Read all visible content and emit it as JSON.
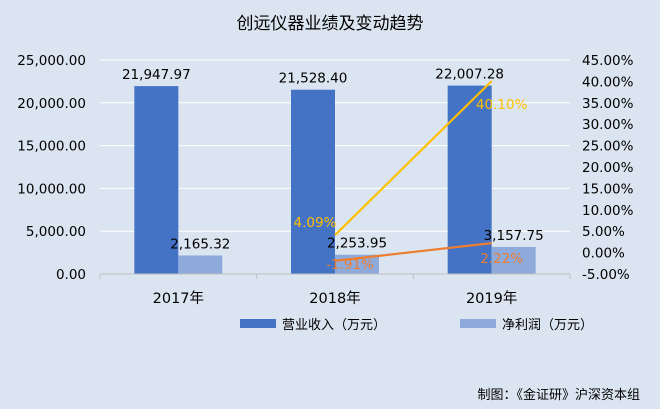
{
  "chart_data": {
    "type": "bar",
    "title": "创远仪器业绩及变动趋势",
    "categories": [
      "2017年",
      "2018年",
      "2019年"
    ],
    "series": [
      {
        "name": "营业收入（万元）",
        "type": "bar",
        "axis": "left",
        "color": "#4472c4",
        "values": [
          21947.97,
          21528.4,
          22007.28
        ],
        "labels": [
          "21,947.97",
          "21,528.40",
          "22,007.28"
        ]
      },
      {
        "name": "净利润（万元）",
        "type": "bar",
        "axis": "left",
        "color": "#8eaadb",
        "values": [
          2165.32,
          2253.95,
          3157.75
        ],
        "labels": [
          "2,165.32",
          "2,253.95",
          "3,157.75"
        ]
      },
      {
        "name": "",
        "type": "line",
        "axis": "right",
        "color": "#ffc000",
        "x": [
          "2018年",
          "2019年"
        ],
        "values": [
          4.09,
          40.1
        ],
        "labels": [
          "4.09%",
          "40.10%"
        ]
      },
      {
        "name": "",
        "type": "line",
        "axis": "right",
        "color": "#ed7d31",
        "x": [
          "2018年",
          "2019年"
        ],
        "values": [
          -1.91,
          2.22
        ],
        "labels": [
          "-1.91%",
          "2.22%"
        ]
      }
    ],
    "left_axis": {
      "ylim": [
        0,
        25000
      ],
      "ticks": [
        0,
        5000,
        10000,
        15000,
        20000,
        25000
      ],
      "tick_labels": [
        "0.00",
        "5,000.00",
        "10,000.00",
        "15,000.00",
        "20,000.00",
        "25,000.00"
      ]
    },
    "right_axis": {
      "ylim": [
        -5,
        45
      ],
      "ticks": [
        -5,
        0,
        5,
        10,
        15,
        20,
        25,
        30,
        35,
        40,
        45
      ],
      "tick_labels": [
        "-5.00%",
        "0.00%",
        "5.00%",
        "10.00%",
        "15.00%",
        "20.00%",
        "25.00%",
        "30.00%",
        "35.00%",
        "40.00%",
        "45.00%"
      ]
    },
    "grid": true,
    "legend_position": "bottom"
  },
  "source_note": "制图：《金证研》沪深资本组",
  "colors": {
    "background": "#dbe5f1",
    "text": "#000000",
    "grid": "#ffffff"
  }
}
